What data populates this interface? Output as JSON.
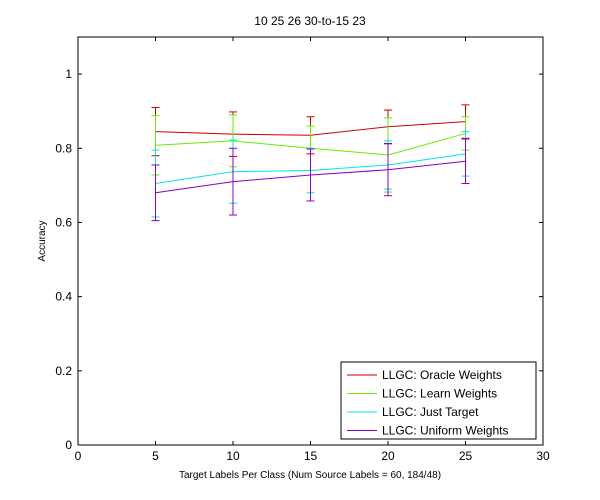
{
  "chart_data": {
    "type": "line",
    "title": "10  25  26  30-to-15  23",
    "xlabel": "Target Labels Per Class (Num Source Labels = 60, 184/48)",
    "ylabel": "Accuracy",
    "xlim": [
      0,
      30
    ],
    "ylim": [
      0,
      1.1
    ],
    "xticks": [
      0,
      5,
      10,
      15,
      20,
      25,
      30
    ],
    "xtick_labels": [
      "0",
      "5",
      "10",
      "15",
      "20",
      "25",
      "30"
    ],
    "yticks": [
      0,
      0.2,
      0.4,
      0.6,
      0.8,
      1
    ],
    "ytick_labels": [
      "0",
      "0.2",
      "0.4",
      "0.6",
      "0.8",
      "1"
    ],
    "grid": false,
    "legend_position": "bottom-right",
    "x": [
      5,
      10,
      15,
      20,
      25
    ],
    "series": [
      {
        "name": "LLGC: Oracle Weights",
        "color": "#cc0000",
        "values": [
          0.845,
          0.838,
          0.835,
          0.858,
          0.872
        ],
        "error": [
          0.065,
          0.06,
          0.05,
          0.045,
          0.045
        ]
      },
      {
        "name": "LLGC: Learn Weights",
        "color": "#66ee00",
        "values": [
          0.808,
          0.82,
          0.8,
          0.782,
          0.84
        ],
        "error": [
          0.08,
          0.07,
          0.06,
          0.1,
          0.045
        ]
      },
      {
        "name": "LLGC: Just Target",
        "color": "#00e5ee",
        "values": [
          0.705,
          0.737,
          0.74,
          0.755,
          0.785
        ],
        "error": [
          0.09,
          0.085,
          0.06,
          0.065,
          0.06
        ]
      },
      {
        "name": "LLGC: Uniform Weights",
        "color": "#8800cc",
        "values": [
          0.68,
          0.71,
          0.728,
          0.742,
          0.765
        ],
        "error": [
          0.075,
          0.09,
          0.07,
          0.07,
          0.06
        ]
      }
    ]
  }
}
